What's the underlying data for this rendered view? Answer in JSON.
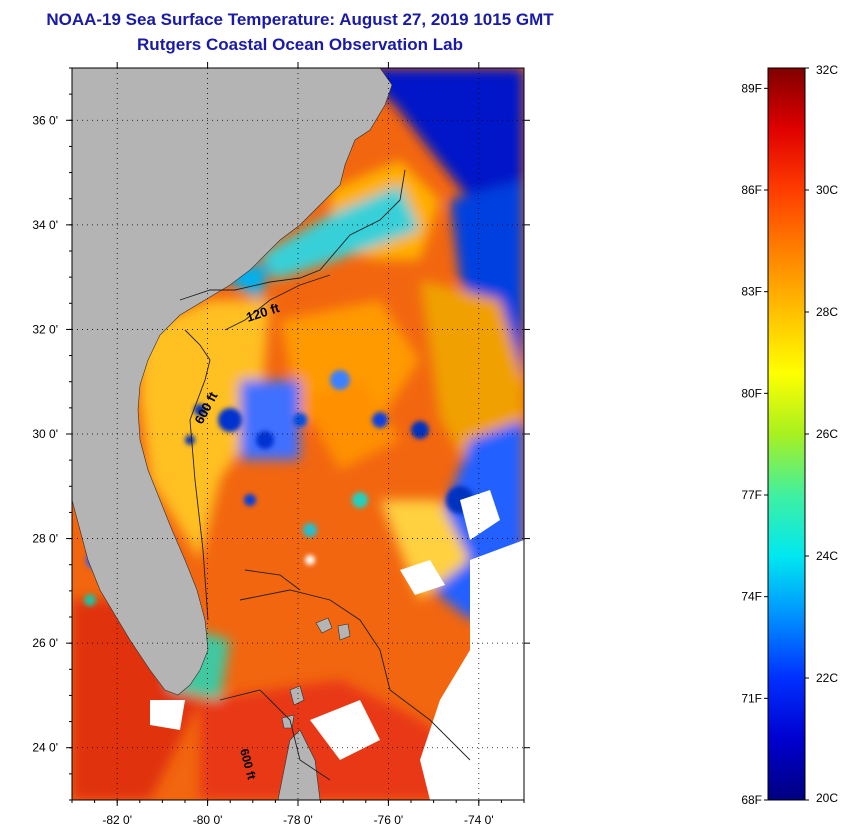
{
  "title_line1": "NOAA-19 Sea Surface Temperature:  August 27, 2019 1015 GMT",
  "title_line2": "Rutgers Coastal Ocean Observation Lab",
  "colors": {
    "title": "#1a1aa8",
    "land": "#b4b4b4",
    "cloud": "#ffffff",
    "ocean_warm": "#f2660f"
  },
  "map": {
    "lon_range": [
      -83,
      -73
    ],
    "lat_range": [
      23,
      37
    ],
    "lon_ticks": [
      {
        "value": -82,
        "label": "-82 0'"
      },
      {
        "value": -80,
        "label": "-80 0'"
      },
      {
        "value": -78,
        "label": "-78 0'"
      },
      {
        "value": -76,
        "label": "-76 0'"
      },
      {
        "value": -74,
        "label": "-74 0'"
      }
    ],
    "lat_ticks": [
      {
        "value": 36,
        "label": "36 0'"
      },
      {
        "value": 34,
        "label": "34 0'"
      },
      {
        "value": 32,
        "label": "32 0'"
      },
      {
        "value": 30,
        "label": "30 0'"
      },
      {
        "value": 28,
        "label": "28 0'"
      },
      {
        "value": 26,
        "label": "26 0'"
      },
      {
        "value": 24,
        "label": "24 0'"
      }
    ],
    "grid_lines": "dotted",
    "isobaths": [
      "120 ft",
      "600 ft",
      "600 ft"
    ]
  },
  "chart_data": {
    "type": "heatmap",
    "title": "NOAA-19 Sea Surface Temperature:  August 27, 2019 1015 GMT",
    "subtitle": "Rutgers Coastal Ocean Observation Lab",
    "colorbar": {
      "min_c": 20,
      "max_c": 32,
      "celsius_ticks": [
        {
          "value": 32,
          "label": "32C"
        },
        {
          "value": 30,
          "label": "30C"
        },
        {
          "value": 28,
          "label": "28C"
        },
        {
          "value": 26,
          "label": "26C"
        },
        {
          "value": 24,
          "label": "24C"
        },
        {
          "value": 22,
          "label": "22C"
        },
        {
          "value": 20,
          "label": "20C"
        }
      ],
      "fahrenheit_ticks": [
        {
          "value": 89,
          "label": "89F"
        },
        {
          "value": 86,
          "label": "86F"
        },
        {
          "value": 83,
          "label": "83F"
        },
        {
          "value": 80,
          "label": "80F"
        },
        {
          "value": 77,
          "label": "77F"
        },
        {
          "value": 74,
          "label": "74F"
        },
        {
          "value": 71,
          "label": "71F"
        },
        {
          "value": 68,
          "label": "68F"
        }
      ],
      "palette": [
        "#00007f",
        "#0000d0",
        "#0030ff",
        "#0090ff",
        "#00e8f0",
        "#40f0a0",
        "#a8f020",
        "#ffff00",
        "#ffc000",
        "#ff8000",
        "#ff3c00",
        "#e00000",
        "#7f0000"
      ]
    }
  }
}
